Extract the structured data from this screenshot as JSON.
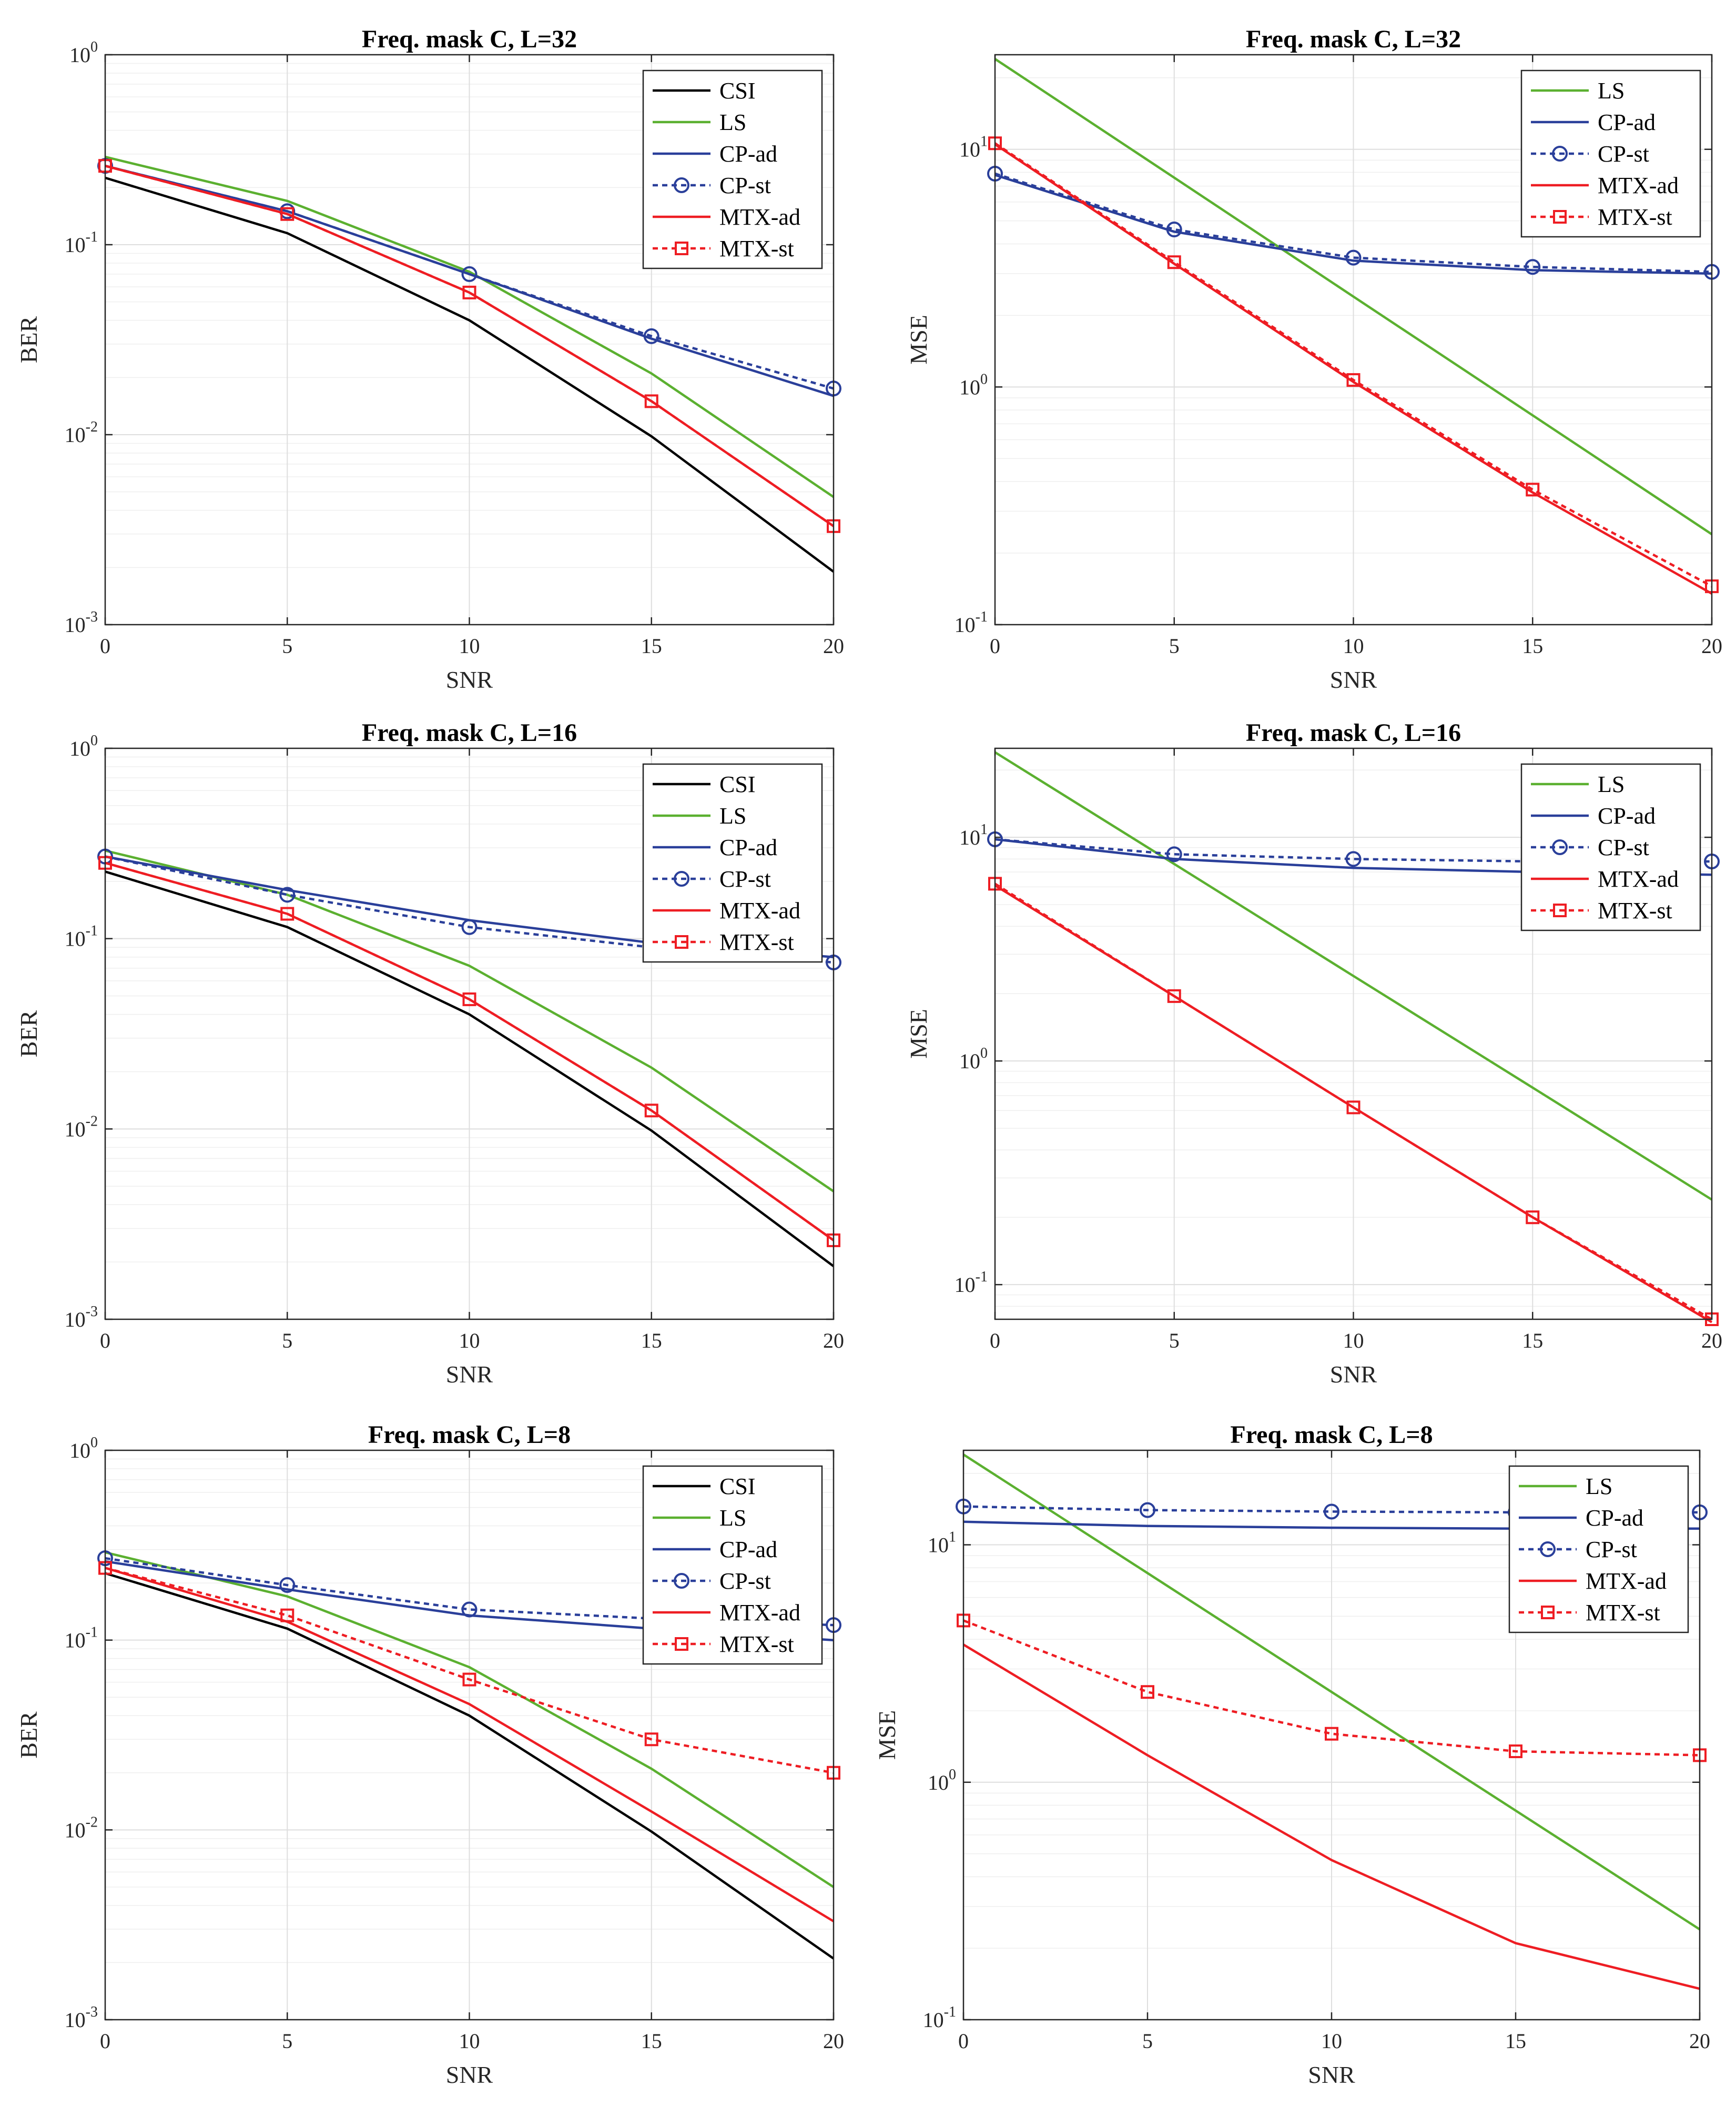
{
  "styles": {
    "CSI": {
      "color": "#000000",
      "dash": "",
      "marker": "none"
    },
    "LS": {
      "color": "#5bb030",
      "dash": "",
      "marker": "none"
    },
    "CP-ad": {
      "color": "#2a3f9a",
      "dash": "",
      "marker": "none"
    },
    "CP-st": {
      "color": "#2a3f9a",
      "dash": "10,8",
      "marker": "circle"
    },
    "MTX-ad": {
      "color": "#ee1d23",
      "dash": "",
      "marker": "none"
    },
    "MTX-st": {
      "color": "#ee1d23",
      "dash": "10,8",
      "marker": "square"
    }
  },
  "chart_data": [
    {
      "type": "line",
      "title": "Freq. mask C, L=32",
      "xlabel": "SNR",
      "ylabel": "BER",
      "yscale": "log",
      "xlim": [
        0,
        20
      ],
      "ylim": [
        0.001,
        1
      ],
      "xticks": [
        "0",
        "5",
        "10",
        "15",
        "20"
      ],
      "yticks": [
        {
          "base": "10",
          "exp": "-3"
        },
        {
          "base": "10",
          "exp": "-2"
        },
        {
          "base": "10",
          "exp": "-1"
        },
        {
          "base": "10",
          "exp": "0"
        }
      ],
      "legend_position": "top-right",
      "grid": true,
      "x": [
        0,
        5,
        10,
        15,
        20
      ],
      "series": [
        {
          "name": "CSI",
          "values": [
            0.225,
            0.115,
            0.04,
            0.0098,
            0.0019
          ]
        },
        {
          "name": "LS",
          "values": [
            0.29,
            0.17,
            0.072,
            0.021,
            0.0047
          ]
        },
        {
          "name": "CP-ad",
          "values": [
            0.26,
            0.15,
            0.07,
            0.032,
            0.016
          ]
        },
        {
          "name": "CP-st",
          "values": [
            0.26,
            0.15,
            0.07,
            0.033,
            0.0175
          ]
        },
        {
          "name": "MTX-ad",
          "values": [
            0.26,
            0.145,
            0.056,
            0.015,
            0.0033
          ]
        },
        {
          "name": "MTX-st",
          "values": [
            0.26,
            0.145,
            0.056,
            0.015,
            0.0033
          ]
        }
      ]
    },
    {
      "type": "line",
      "title": "Freq. mask C, L=32",
      "xlabel": "SNR",
      "ylabel": "MSE",
      "yscale": "log",
      "xlim": [
        0,
        20
      ],
      "ylim": [
        0.1,
        25
      ],
      "xticks": [
        "0",
        "5",
        "10",
        "15",
        "20"
      ],
      "yticks": [
        {
          "base": "10",
          "exp": "-1"
        },
        {
          "base": "10",
          "exp": "0"
        },
        {
          "base": "10",
          "exp": "1"
        }
      ],
      "legend_position": "top-right",
      "grid": true,
      "x": [
        0,
        5,
        10,
        15,
        20
      ],
      "series": [
        {
          "name": "LS",
          "values": [
            24,
            7.6,
            2.4,
            0.76,
            0.24
          ]
        },
        {
          "name": "CP-ad",
          "values": [
            7.8,
            4.5,
            3.4,
            3.1,
            3.0
          ]
        },
        {
          "name": "CP-st",
          "values": [
            7.9,
            4.6,
            3.5,
            3.2,
            3.05
          ]
        },
        {
          "name": "MTX-ad",
          "values": [
            10.5,
            3.3,
            1.05,
            0.36,
            0.135
          ]
        },
        {
          "name": "MTX-st",
          "values": [
            10.6,
            3.35,
            1.07,
            0.37,
            0.145
          ]
        }
      ]
    },
    {
      "type": "line",
      "title": "Freq. mask C, L=16",
      "xlabel": "SNR",
      "ylabel": "BER",
      "yscale": "log",
      "xlim": [
        0,
        20
      ],
      "ylim": [
        0.001,
        1
      ],
      "xticks": [
        "0",
        "5",
        "10",
        "15",
        "20"
      ],
      "yticks": [
        {
          "base": "10",
          "exp": "-3"
        },
        {
          "base": "10",
          "exp": "-2"
        },
        {
          "base": "10",
          "exp": "-1"
        },
        {
          "base": "10",
          "exp": "0"
        }
      ],
      "legend_position": "top-right",
      "grid": true,
      "x": [
        0,
        5,
        10,
        15,
        20
      ],
      "series": [
        {
          "name": "CSI",
          "values": [
            0.225,
            0.115,
            0.04,
            0.0098,
            0.0019
          ]
        },
        {
          "name": "LS",
          "values": [
            0.29,
            0.17,
            0.072,
            0.021,
            0.0047
          ]
        },
        {
          "name": "CP-ad",
          "values": [
            0.27,
            0.18,
            0.125,
            0.095,
            0.08
          ]
        },
        {
          "name": "CP-st",
          "values": [
            0.27,
            0.17,
            0.115,
            0.09,
            0.075
          ]
        },
        {
          "name": "MTX-ad",
          "values": [
            0.25,
            0.135,
            0.048,
            0.0125,
            0.0026
          ]
        },
        {
          "name": "MTX-st",
          "values": [
            0.25,
            0.135,
            0.048,
            0.0125,
            0.0026
          ]
        }
      ]
    },
    {
      "type": "line",
      "title": "Freq. mask C, L=16",
      "xlabel": "SNR",
      "ylabel": "MSE",
      "yscale": "log",
      "xlim": [
        0,
        20
      ],
      "ylim": [
        0.07,
        25
      ],
      "xticks": [
        "0",
        "5",
        "10",
        "15",
        "20"
      ],
      "yticks": [
        {
          "base": "10",
          "exp": "-1"
        },
        {
          "base": "10",
          "exp": "0"
        },
        {
          "base": "10",
          "exp": "1"
        }
      ],
      "legend_position": "top-right",
      "grid": true,
      "x": [
        0,
        5,
        10,
        15,
        20
      ],
      "series": [
        {
          "name": "LS",
          "values": [
            24,
            7.6,
            2.4,
            0.76,
            0.24
          ]
        },
        {
          "name": "CP-ad",
          "values": [
            9.8,
            8.0,
            7.3,
            7.0,
            6.8
          ]
        },
        {
          "name": "CP-st",
          "values": [
            9.8,
            8.4,
            8.0,
            7.8,
            7.8
          ]
        },
        {
          "name": "MTX-ad",
          "values": [
            6.1,
            1.95,
            0.62,
            0.2,
            0.068
          ]
        },
        {
          "name": "MTX-st",
          "values": [
            6.2,
            1.95,
            0.62,
            0.2,
            0.07
          ]
        }
      ]
    },
    {
      "type": "line",
      "title": "Freq. mask C, L=8",
      "xlabel": "SNR",
      "ylabel": "BER",
      "yscale": "log",
      "xlim": [
        0,
        20
      ],
      "ylim": [
        0.001,
        1
      ],
      "xticks": [
        "0",
        "5",
        "10",
        "15",
        "20"
      ],
      "yticks": [
        {
          "base": "10",
          "exp": "-3"
        },
        {
          "base": "10",
          "exp": "-2"
        },
        {
          "base": "10",
          "exp": "-1"
        },
        {
          "base": "10",
          "exp": "0"
        }
      ],
      "legend_position": "top-right",
      "grid": true,
      "x": [
        0,
        5,
        10,
        15,
        20
      ],
      "series": [
        {
          "name": "CSI",
          "values": [
            0.225,
            0.115,
            0.04,
            0.0098,
            0.0021
          ]
        },
        {
          "name": "LS",
          "values": [
            0.29,
            0.17,
            0.072,
            0.021,
            0.005
          ]
        },
        {
          "name": "CP-ad",
          "values": [
            0.26,
            0.185,
            0.135,
            0.115,
            0.1
          ]
        },
        {
          "name": "CP-st",
          "values": [
            0.27,
            0.195,
            0.145,
            0.13,
            0.12
          ]
        },
        {
          "name": "MTX-ad",
          "values": [
            0.24,
            0.125,
            0.046,
            0.0125,
            0.0033
          ]
        },
        {
          "name": "MTX-st",
          "values": [
            0.24,
            0.135,
            0.062,
            0.03,
            0.02
          ]
        }
      ]
    },
    {
      "type": "line",
      "title": "Freq. mask C, L=8",
      "xlabel": "SNR",
      "ylabel": "MSE",
      "yscale": "log",
      "xlim": [
        0,
        20
      ],
      "ylim": [
        0.1,
        25
      ],
      "xticks": [
        "0",
        "5",
        "10",
        "15",
        "20"
      ],
      "yticks": [
        {
          "base": "10",
          "exp": "-1"
        },
        {
          "base": "10",
          "exp": "0"
        },
        {
          "base": "10",
          "exp": "1"
        }
      ],
      "legend_position": "top-right",
      "grid": true,
      "x": [
        0,
        5,
        10,
        15,
        20
      ],
      "series": [
        {
          "name": "LS",
          "values": [
            24,
            7.6,
            2.4,
            0.76,
            0.24
          ]
        },
        {
          "name": "CP-ad",
          "values": [
            12.5,
            12.0,
            11.8,
            11.7,
            11.7
          ]
        },
        {
          "name": "CP-st",
          "values": [
            14.5,
            14.0,
            13.8,
            13.7,
            13.7
          ]
        },
        {
          "name": "MTX-ad",
          "values": [
            3.8,
            1.3,
            0.47,
            0.21,
            0.135
          ]
        },
        {
          "name": "MTX-st",
          "values": [
            4.8,
            2.4,
            1.6,
            1.35,
            1.3
          ]
        }
      ]
    }
  ]
}
